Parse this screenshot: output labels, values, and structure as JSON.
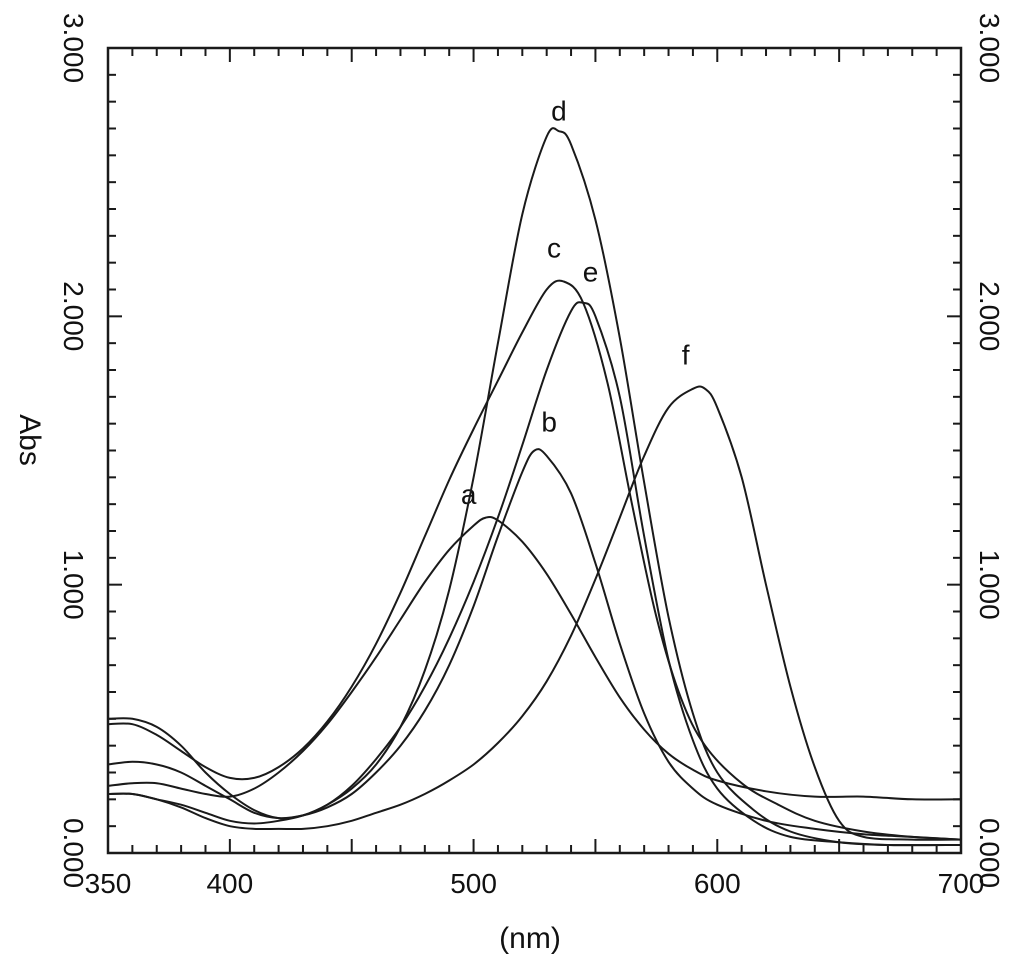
{
  "chart_data": {
    "type": "line",
    "xlabel": "(nm)",
    "ylabel": "Abs",
    "xlim": [
      350,
      700
    ],
    "ylim": [
      0,
      3
    ],
    "x_ticks": [
      {
        "value": 350,
        "label": "350"
      },
      {
        "value": 400,
        "label": "400"
      },
      {
        "value": 500,
        "label": "500"
      },
      {
        "value": 600,
        "label": "600"
      },
      {
        "value": 700,
        "label": "700"
      }
    ],
    "y_ticks_left": [
      {
        "value": 0,
        "label": "0.000"
      },
      {
        "value": 1,
        "label": "1.000"
      },
      {
        "value": 2,
        "label": "2.000"
      },
      {
        "value": 3,
        "label": "3.000"
      }
    ],
    "y_ticks_right": [
      {
        "value": 0,
        "label": "0.000"
      },
      {
        "value": 1,
        "label": "1.000"
      },
      {
        "value": 2,
        "label": "2.000"
      },
      {
        "value": 3,
        "label": "3.000"
      }
    ],
    "grid": false,
    "series": [
      {
        "name": "a",
        "label_at": [
          498,
          1.3
        ],
        "points": [
          [
            350,
            0.25
          ],
          [
            360,
            0.26
          ],
          [
            370,
            0.26
          ],
          [
            380,
            0.24
          ],
          [
            390,
            0.22
          ],
          [
            400,
            0.21
          ],
          [
            410,
            0.24
          ],
          [
            420,
            0.3
          ],
          [
            430,
            0.38
          ],
          [
            440,
            0.48
          ],
          [
            450,
            0.6
          ],
          [
            460,
            0.73
          ],
          [
            470,
            0.87
          ],
          [
            480,
            1.01
          ],
          [
            490,
            1.13
          ],
          [
            500,
            1.22
          ],
          [
            505,
            1.25
          ],
          [
            510,
            1.24
          ],
          [
            520,
            1.16
          ],
          [
            530,
            1.04
          ],
          [
            540,
            0.89
          ],
          [
            550,
            0.73
          ],
          [
            560,
            0.58
          ],
          [
            570,
            0.46
          ],
          [
            580,
            0.37
          ],
          [
            590,
            0.31
          ],
          [
            600,
            0.27
          ],
          [
            620,
            0.23
          ],
          [
            640,
            0.21
          ],
          [
            660,
            0.21
          ],
          [
            680,
            0.2
          ],
          [
            700,
            0.2
          ]
        ]
      },
      {
        "name": "b",
        "label_at": [
          531,
          1.57
        ],
        "points": [
          [
            350,
            0.33
          ],
          [
            360,
            0.34
          ],
          [
            370,
            0.33
          ],
          [
            380,
            0.3
          ],
          [
            390,
            0.25
          ],
          [
            400,
            0.2
          ],
          [
            410,
            0.15
          ],
          [
            420,
            0.13
          ],
          [
            430,
            0.14
          ],
          [
            440,
            0.17
          ],
          [
            450,
            0.22
          ],
          [
            460,
            0.3
          ],
          [
            470,
            0.4
          ],
          [
            480,
            0.53
          ],
          [
            490,
            0.7
          ],
          [
            500,
            0.92
          ],
          [
            510,
            1.18
          ],
          [
            520,
            1.42
          ],
          [
            525,
            1.5
          ],
          [
            530,
            1.48
          ],
          [
            540,
            1.34
          ],
          [
            550,
            1.08
          ],
          [
            560,
            0.78
          ],
          [
            570,
            0.52
          ],
          [
            580,
            0.34
          ],
          [
            590,
            0.24
          ],
          [
            600,
            0.18
          ],
          [
            620,
            0.12
          ],
          [
            640,
            0.09
          ],
          [
            660,
            0.07
          ],
          [
            680,
            0.06
          ],
          [
            700,
            0.05
          ]
        ]
      },
      {
        "name": "c",
        "label_at": [
          533,
          2.22
        ],
        "points": [
          [
            350,
            0.48
          ],
          [
            360,
            0.48
          ],
          [
            370,
            0.44
          ],
          [
            380,
            0.38
          ],
          [
            390,
            0.32
          ],
          [
            400,
            0.28
          ],
          [
            410,
            0.28
          ],
          [
            420,
            0.32
          ],
          [
            430,
            0.39
          ],
          [
            440,
            0.49
          ],
          [
            450,
            0.62
          ],
          [
            460,
            0.78
          ],
          [
            470,
            0.97
          ],
          [
            480,
            1.18
          ],
          [
            490,
            1.39
          ],
          [
            500,
            1.58
          ],
          [
            510,
            1.76
          ],
          [
            520,
            1.94
          ],
          [
            530,
            2.1
          ],
          [
            537,
            2.13
          ],
          [
            545,
            2.05
          ],
          [
            555,
            1.75
          ],
          [
            565,
            1.3
          ],
          [
            575,
            0.88
          ],
          [
            585,
            0.58
          ],
          [
            595,
            0.4
          ],
          [
            610,
            0.26
          ],
          [
            625,
            0.18
          ],
          [
            640,
            0.12
          ],
          [
            660,
            0.08
          ],
          [
            680,
            0.06
          ],
          [
            700,
            0.05
          ]
        ]
      },
      {
        "name": "d",
        "label_at": [
          535,
          2.73
        ],
        "points": [
          [
            350,
            0.22
          ],
          [
            360,
            0.22
          ],
          [
            370,
            0.2
          ],
          [
            380,
            0.18
          ],
          [
            390,
            0.15
          ],
          [
            400,
            0.12
          ],
          [
            410,
            0.11
          ],
          [
            420,
            0.12
          ],
          [
            430,
            0.14
          ],
          [
            440,
            0.18
          ],
          [
            450,
            0.24
          ],
          [
            460,
            0.33
          ],
          [
            470,
            0.47
          ],
          [
            480,
            0.68
          ],
          [
            490,
            0.98
          ],
          [
            500,
            1.4
          ],
          [
            510,
            1.9
          ],
          [
            520,
            2.38
          ],
          [
            530,
            2.67
          ],
          [
            535,
            2.69
          ],
          [
            540,
            2.64
          ],
          [
            550,
            2.36
          ],
          [
            560,
            1.92
          ],
          [
            570,
            1.38
          ],
          [
            580,
            0.88
          ],
          [
            590,
            0.52
          ],
          [
            600,
            0.3
          ],
          [
            615,
            0.16
          ],
          [
            630,
            0.08
          ],
          [
            650,
            0.04
          ],
          [
            670,
            0.03
          ],
          [
            700,
            0.03
          ]
        ]
      },
      {
        "name": "e",
        "label_at": [
          548,
          2.13
        ],
        "points": [
          [
            350,
            0.5
          ],
          [
            360,
            0.5
          ],
          [
            370,
            0.47
          ],
          [
            380,
            0.4
          ],
          [
            390,
            0.3
          ],
          [
            400,
            0.22
          ],
          [
            410,
            0.16
          ],
          [
            420,
            0.13
          ],
          [
            430,
            0.14
          ],
          [
            440,
            0.18
          ],
          [
            450,
            0.25
          ],
          [
            460,
            0.35
          ],
          [
            470,
            0.47
          ],
          [
            480,
            0.62
          ],
          [
            490,
            0.8
          ],
          [
            500,
            1.01
          ],
          [
            510,
            1.25
          ],
          [
            520,
            1.52
          ],
          [
            530,
            1.8
          ],
          [
            540,
            2.02
          ],
          [
            545,
            2.05
          ],
          [
            550,
            2.0
          ],
          [
            560,
            1.7
          ],
          [
            570,
            1.18
          ],
          [
            580,
            0.72
          ],
          [
            590,
            0.42
          ],
          [
            600,
            0.24
          ],
          [
            615,
            0.12
          ],
          [
            630,
            0.06
          ],
          [
            650,
            0.04
          ],
          [
            670,
            0.03
          ],
          [
            700,
            0.03
          ]
        ]
      },
      {
        "name": "f",
        "label_at": [
          587,
          1.82
        ],
        "points": [
          [
            350,
            0.22
          ],
          [
            360,
            0.22
          ],
          [
            370,
            0.2
          ],
          [
            380,
            0.17
          ],
          [
            390,
            0.13
          ],
          [
            400,
            0.1
          ],
          [
            410,
            0.09
          ],
          [
            420,
            0.09
          ],
          [
            430,
            0.09
          ],
          [
            440,
            0.1
          ],
          [
            450,
            0.12
          ],
          [
            460,
            0.15
          ],
          [
            470,
            0.18
          ],
          [
            480,
            0.22
          ],
          [
            490,
            0.27
          ],
          [
            500,
            0.33
          ],
          [
            510,
            0.41
          ],
          [
            520,
            0.51
          ],
          [
            530,
            0.64
          ],
          [
            540,
            0.81
          ],
          [
            550,
            1.02
          ],
          [
            560,
            1.25
          ],
          [
            570,
            1.48
          ],
          [
            580,
            1.66
          ],
          [
            590,
            1.73
          ],
          [
            595,
            1.73
          ],
          [
            600,
            1.66
          ],
          [
            610,
            1.4
          ],
          [
            620,
            1.0
          ],
          [
            630,
            0.62
          ],
          [
            640,
            0.32
          ],
          [
            650,
            0.12
          ],
          [
            660,
            0.06
          ],
          [
            680,
            0.05
          ],
          [
            700,
            0.05
          ]
        ]
      }
    ]
  }
}
